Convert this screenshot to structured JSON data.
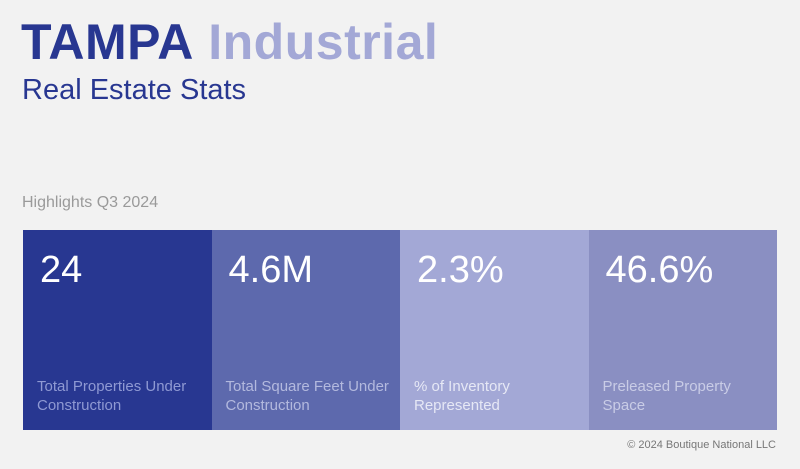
{
  "header": {
    "city": "TAMPA",
    "sector": "Industrial",
    "subtitle": "Real Estate Stats"
  },
  "highlights_label": "Highlights Q3 2024",
  "stats": [
    {
      "value": "24",
      "label": "Total Properties Under Construction",
      "color": "#283791",
      "label_color": "#8f99d3"
    },
    {
      "value": "4.6M",
      "label": "Total Square Feet Under Construction",
      "color": "#5d69ad",
      "label_color": "#b3b9de"
    },
    {
      "value": "2.3%",
      "label": "% of Inventory Represented",
      "color": "#a3a8d6",
      "label_color": "#e6e8f5"
    },
    {
      "value": "46.6%",
      "label": "Preleased Property Space",
      "color": "#8a8fc2",
      "label_color": "#c9cce6"
    }
  ],
  "footer": "© 2024 Boutique National LLC"
}
